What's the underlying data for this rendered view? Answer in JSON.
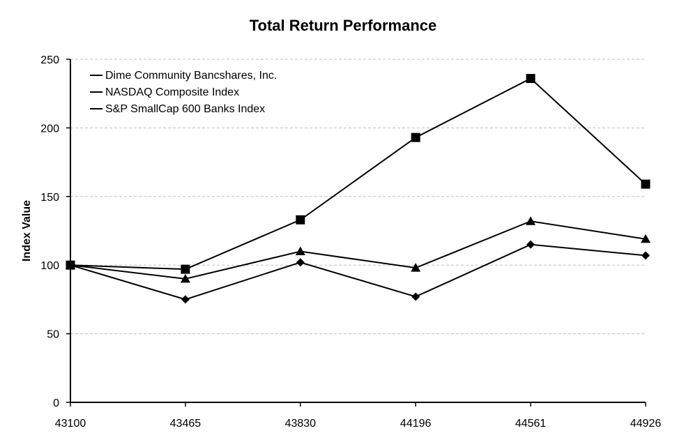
{
  "chart_data": {
    "type": "line",
    "title": "Total Return Performance",
    "xlabel": "",
    "ylabel": "Index Value",
    "x": [
      43100,
      43465,
      43830,
      44196,
      44561,
      44926
    ],
    "x_tick_labels": [
      "43100",
      "43465",
      "43830",
      "44196",
      "44561",
      "44926"
    ],
    "ylim": [
      0,
      250
    ],
    "y_ticks": [
      0,
      50,
      100,
      150,
      200,
      250
    ],
    "y_tick_labels": [
      "0",
      "50",
      "100",
      "150",
      "200",
      "250"
    ],
    "grid": "horizontal-dashed",
    "legend_position": "top-left",
    "series": [
      {
        "name": "Dime Community Bancshares, Inc.",
        "marker": "diamond",
        "color": "#000000",
        "values": [
          100,
          75,
          102,
          77,
          115,
          107
        ]
      },
      {
        "name": "NASDAQ Composite Index",
        "marker": "square",
        "color": "#000000",
        "values": [
          100,
          97,
          133,
          193,
          236,
          159
        ]
      },
      {
        "name": "S&P SmallCap 600 Banks Index",
        "marker": "triangle",
        "color": "#000000",
        "values": [
          100,
          90,
          110,
          98,
          132,
          119
        ]
      }
    ]
  }
}
